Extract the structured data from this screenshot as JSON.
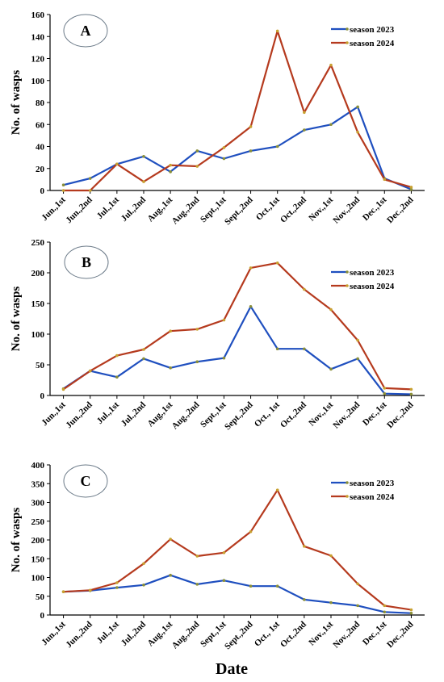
{
  "figure": {
    "x_title": "Date"
  },
  "colors": {
    "season_2023": "#1f4fbf",
    "season_2024": "#b53a1e",
    "marker_2023": "#8a8f3a",
    "marker_2024": "#c8a030"
  },
  "chart_data": [
    {
      "type": "line",
      "panel": "A",
      "ylabel": "No. of wasps",
      "ylim": [
        0,
        160
      ],
      "yticks": [
        0,
        20,
        40,
        60,
        80,
        100,
        120,
        140,
        160
      ],
      "categories": [
        "Jun.,1st",
        "Jun.,2nd",
        "Jul.,1st",
        "Jul.,2nd",
        "Aug.,1st",
        "Aug.,2nd",
        "Sept.,1st",
        "Sept.,2nd",
        "Oct.,1st",
        "Oct.,2nd",
        "Nov.,1st",
        "Nov.,2nd",
        "Dec.,1st",
        "Dec.,2nd"
      ],
      "series": [
        {
          "name": "season 2023",
          "values": [
            5,
            11,
            24,
            31,
            17,
            36,
            29,
            36,
            40,
            55,
            60,
            76,
            11,
            1
          ]
        },
        {
          "name": "season 2024",
          "values": [
            0,
            0,
            24,
            8,
            23,
            22,
            39,
            58,
            145,
            71,
            114,
            53,
            10,
            3
          ]
        }
      ]
    },
    {
      "type": "line",
      "panel": "B",
      "ylabel": "No. of wasps",
      "ylim": [
        0,
        250
      ],
      "yticks": [
        0,
        50,
        100,
        150,
        200,
        250
      ],
      "categories": [
        "Jun.,1st",
        "Jun.,2nd",
        "Jul.,1st",
        "Jul.,2nd",
        "Aug.,1st",
        "Aug.,2nd",
        "Sept.,1st",
        "Sept.,2nd",
        "Oct., 1st",
        "Oct.,2nd",
        "Nov.,1st",
        "Nov.,2nd",
        "Dec.,1st",
        "Dec.,2nd"
      ],
      "series": [
        {
          "name": "season 2023",
          "values": [
            11,
            40,
            30,
            60,
            45,
            55,
            61,
            145,
            76,
            76,
            43,
            60,
            3,
            2
          ]
        },
        {
          "name": "season 2024",
          "values": [
            10,
            40,
            65,
            75,
            105,
            108,
            123,
            208,
            216,
            173,
            140,
            90,
            12,
            10
          ]
        }
      ]
    },
    {
      "type": "line",
      "panel": "C",
      "ylabel": "No. of wasps",
      "ylim": [
        0,
        400
      ],
      "yticks": [
        0,
        50,
        100,
        150,
        200,
        250,
        300,
        350,
        400
      ],
      "categories": [
        "Jun.,1st",
        "Jun.,2nd",
        "Jul.,1st",
        "Jul.,2nd",
        "Aug.,1st",
        "Aug.,2nd",
        "Sept.,1st",
        "Sept.,2nd",
        "Oct., 1st",
        "Oct.,2nd",
        "Nov.,1st",
        "Nov.,2nd",
        "Dec.,1st",
        "Dec.,2nd"
      ],
      "series": [
        {
          "name": "season 2023",
          "values": [
            62,
            65,
            73,
            80,
            106,
            82,
            92,
            77,
            77,
            41,
            33,
            25,
            8,
            5
          ]
        },
        {
          "name": "season 2024",
          "values": [
            62,
            66,
            86,
            137,
            202,
            157,
            166,
            222,
            333,
            183,
            158,
            83,
            25,
            14
          ]
        }
      ]
    }
  ]
}
